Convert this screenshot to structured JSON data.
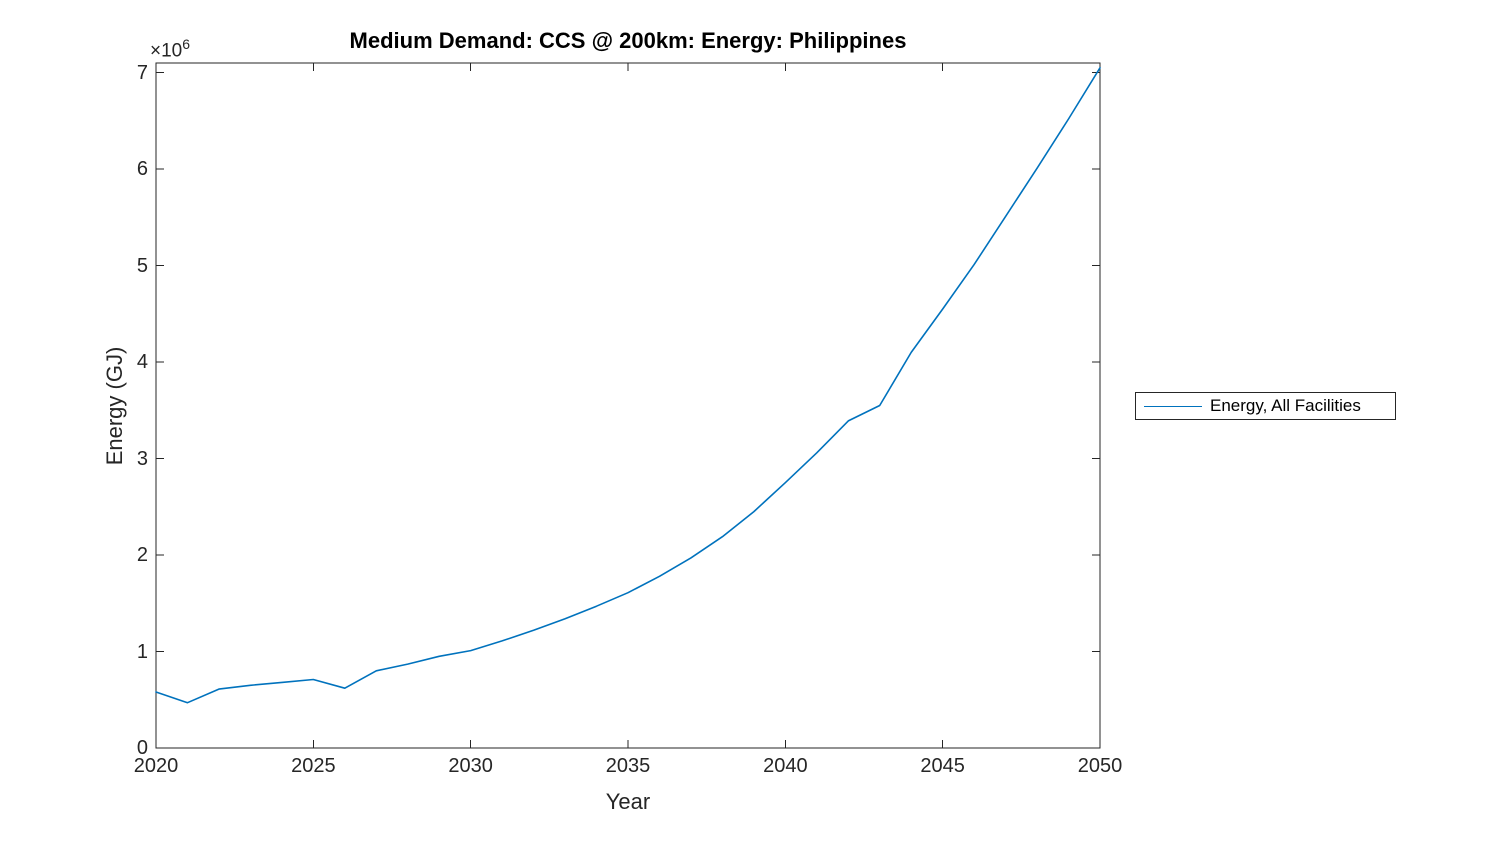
{
  "figure": {
    "background_color": "#FFFFFF",
    "axis_color": "#262626",
    "title_color": "#000000"
  },
  "axes": {
    "y_exponent_base": "×10",
    "y_exponent_power": "6"
  },
  "legend": {
    "entries": [
      {
        "label": "Energy, All Facilities",
        "color": "#0072BD"
      }
    ],
    "position": "outside-right",
    "border_color": "#262626"
  },
  "chart_data": {
    "type": "line",
    "title": "Medium Demand: CCS @ 200km: Energy: Philippines",
    "xlabel": "Year",
    "ylabel": "Energy (GJ)",
    "x": [
      2020,
      2021,
      2022,
      2023,
      2024,
      2025,
      2026,
      2027,
      2028,
      2029,
      2030,
      2031,
      2032,
      2033,
      2034,
      2035,
      2036,
      2037,
      2038,
      2039,
      2040,
      2041,
      2042,
      2043,
      2044,
      2045,
      2046,
      2047,
      2048,
      2049,
      2050
    ],
    "series": [
      {
        "name": "Energy, All Facilities",
        "color": "#0072BD",
        "values": [
          580000,
          470000,
          610000,
          650000,
          680000,
          710000,
          620000,
          800000,
          870000,
          950000,
          1010000,
          1110000,
          1220000,
          1340000,
          1470000,
          1610000,
          1780000,
          1970000,
          2190000,
          2450000,
          2750000,
          3060000,
          3390000,
          3550000,
          4100000,
          4550000,
          5010000,
          5510000,
          6010000,
          6520000,
          7050000
        ]
      }
    ],
    "xlim": [
      2020,
      2050
    ],
    "ylim": [
      0,
      7100000
    ],
    "xticks": [
      2020,
      2025,
      2030,
      2035,
      2040,
      2045,
      2050
    ],
    "yticks": [
      0,
      1,
      2,
      3,
      4,
      5,
      6,
      7
    ],
    "ytick_scale": 1000000,
    "grid": false,
    "legend_position": "right-outside",
    "line_width": 1.6
  }
}
